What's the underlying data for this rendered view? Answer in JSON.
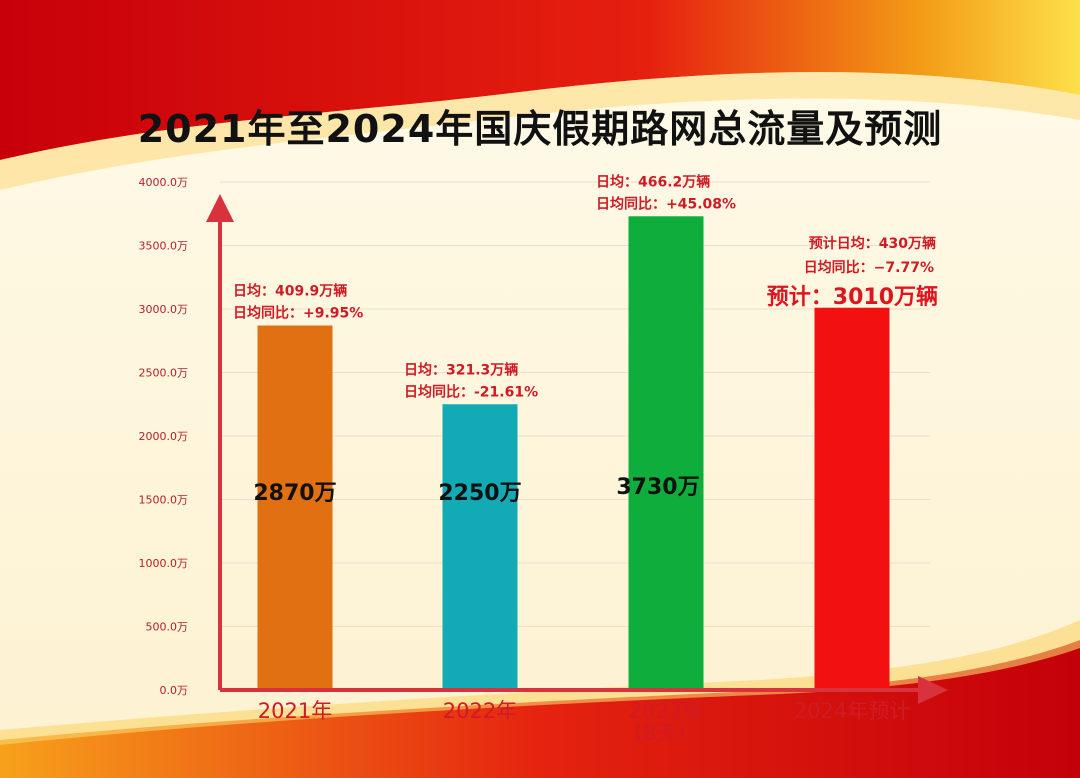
{
  "title": "2021年至2024年国庆假期路网总流量及预测",
  "chart_data": {
    "type": "bar",
    "title": "2021年至2024年国庆假期路网总流量及预测",
    "ylim": [
      0,
      4000
    ],
    "y_ticks": [
      "0.0万",
      "500.0万",
      "1000.0万",
      "1500.0万",
      "2000.0万",
      "2500.0万",
      "3000.0万",
      "3500.0万",
      "4000.0万"
    ],
    "y_tick_values": [
      0,
      500,
      1000,
      1500,
      2000,
      2500,
      3000,
      3500,
      4000
    ],
    "grid": true,
    "categories": [
      {
        "line1": "2021年",
        "line2": ""
      },
      {
        "line1": "2022年",
        "line2": ""
      },
      {
        "line1": "2023年",
        "line2": "(8天)"
      },
      {
        "line1": "2024年预计",
        "line2": ""
      }
    ],
    "values": [
      2870,
      2250,
      3730,
      3010
    ],
    "value_labels": [
      "2870万",
      "2250万",
      "3730万",
      ""
    ],
    "bar_colors": [
      "#e07012",
      "#12aab4",
      "#0fae3c",
      "#f21010"
    ],
    "annotations": [
      {
        "line1": "日均：409.9万辆",
        "line2": "日均同比：+9.95%"
      },
      {
        "line1": "日均：321.3万辆",
        "line2": "日均同比：-21.61%"
      },
      {
        "line1": "日均：466.2万辆",
        "line2": "日均同比：+45.08%"
      },
      {
        "line1": "预计日均：430万辆",
        "line2": "日均同比：−7.77%",
        "line3": "预计：3010万辆"
      }
    ],
    "axis_color": "#d8323c"
  }
}
